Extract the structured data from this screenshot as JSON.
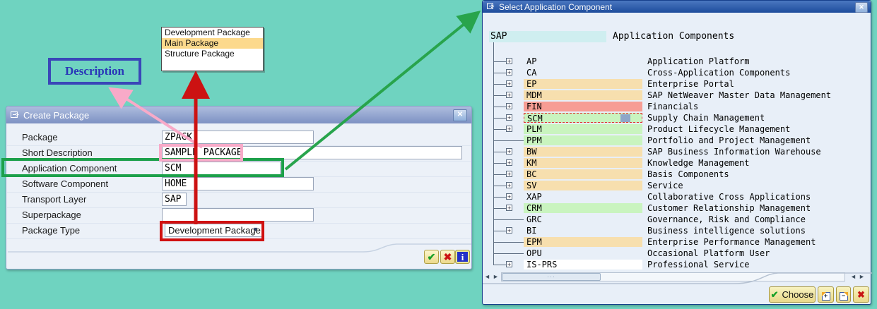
{
  "page": {
    "background_color": "#6fd3c0"
  },
  "package_type_list": {
    "items": [
      {
        "label": "Development Package",
        "selected": false
      },
      {
        "label": "Main Package",
        "selected": true
      },
      {
        "label": "Structure Package",
        "selected": false
      }
    ],
    "highlight_color": "#fcd98c"
  },
  "annotations": {
    "description_label": "Description",
    "colors": {
      "description_border": "#3a46b8",
      "pink_arrow": "#f8aac8",
      "red_arrow": "#cc1212",
      "green_arrow": "#28a44c"
    }
  },
  "create_package_dialog": {
    "title": "Create Package",
    "close_icon": "✕",
    "fields": [
      {
        "label": "Package",
        "value": "ZPACK",
        "type": "input"
      },
      {
        "label": "Short Description",
        "value": "SAMPLE PACKAGE",
        "type": "input"
      },
      {
        "label": "Application Component",
        "value": "SCM",
        "type": "input"
      },
      {
        "label": "Software Component",
        "value": "HOME",
        "type": "input"
      },
      {
        "label": "Transport Layer",
        "value": "SAP",
        "type": "input"
      },
      {
        "label": "Superpackage",
        "value": "",
        "type": "input"
      },
      {
        "label": "Package Type",
        "value": "Development Package",
        "type": "dropdown"
      }
    ],
    "dropdown_caret": "▼",
    "footer_buttons": [
      {
        "name": "confirm-button",
        "icon": "✔"
      },
      {
        "name": "cancel-button",
        "icon": "✖"
      },
      {
        "name": "info-button",
        "icon": "i"
      }
    ]
  },
  "select_component_dialog": {
    "title": "Select Application Component",
    "close_icon": "✕",
    "root_code": "SAP",
    "header": "Application Components",
    "row_colors": {
      "tan": "#f7dfae",
      "salmon": "#f79d94",
      "green": "#c9f4bf",
      "white": "#ffffff",
      "root": "#cfeef0"
    },
    "tree": [
      {
        "code": "AP",
        "desc": "Application Platform",
        "expandable": true,
        "bg": "none",
        "selected": false
      },
      {
        "code": "CA",
        "desc": "Cross-Application Components",
        "expandable": true,
        "bg": "none",
        "selected": false
      },
      {
        "code": "EP",
        "desc": "Enterprise Portal",
        "expandable": true,
        "bg": "tan",
        "selected": false
      },
      {
        "code": "MDM",
        "desc": "SAP NetWeaver Master Data Management",
        "expandable": true,
        "bg": "tan",
        "selected": false
      },
      {
        "code": "FIN",
        "desc": "Financials",
        "expandable": true,
        "bg": "salmon",
        "selected": false
      },
      {
        "code": "SCM",
        "desc": "Supply Chain Management",
        "expandable": true,
        "bg": "green",
        "selected": true
      },
      {
        "code": "PLM",
        "desc": "Product Lifecycle Management",
        "expandable": true,
        "bg": "green",
        "selected": false
      },
      {
        "code": "PPM",
        "desc": "Portfolio and Project Management",
        "expandable": false,
        "bg": "green",
        "selected": false
      },
      {
        "code": "BW",
        "desc": "SAP Business Information Warehouse",
        "expandable": true,
        "bg": "tan",
        "selected": false
      },
      {
        "code": "KM",
        "desc": "Knowledge Management",
        "expandable": true,
        "bg": "tan",
        "selected": false
      },
      {
        "code": "BC",
        "desc": "Basis Components",
        "expandable": true,
        "bg": "tan",
        "selected": false
      },
      {
        "code": "SV",
        "desc": "Service",
        "expandable": true,
        "bg": "tan",
        "selected": false
      },
      {
        "code": "XAP",
        "desc": "Collaborative Cross Applications",
        "expandable": true,
        "bg": "none",
        "selected": false
      },
      {
        "code": "CRM",
        "desc": "Customer Relationship Management",
        "expandable": true,
        "bg": "green",
        "selected": false
      },
      {
        "code": "GRC",
        "desc": "Governance, Risk and Compliance",
        "expandable": false,
        "bg": "none",
        "selected": false
      },
      {
        "code": "BI",
        "desc": "Business intelligence solutions",
        "expandable": true,
        "bg": "none",
        "selected": false
      },
      {
        "code": "EPM",
        "desc": "Enterprise Performance Management",
        "expandable": false,
        "bg": "tan",
        "selected": false
      },
      {
        "code": "OPU",
        "desc": "Occasional Platform User",
        "expandable": false,
        "bg": "none",
        "selected": false
      },
      {
        "code": "IS-PRS",
        "desc": "Professional Service",
        "expandable": true,
        "bg": "white",
        "selected": false
      }
    ],
    "expand_glyph": "+",
    "collapse_glyph": "−",
    "buttons": {
      "choose_label": "Choose",
      "choose_icon": "✔",
      "close_icon": "✖"
    },
    "scrollbar": {
      "left_icon": "◄",
      "right_icon": "►",
      "grip": "···"
    }
  }
}
